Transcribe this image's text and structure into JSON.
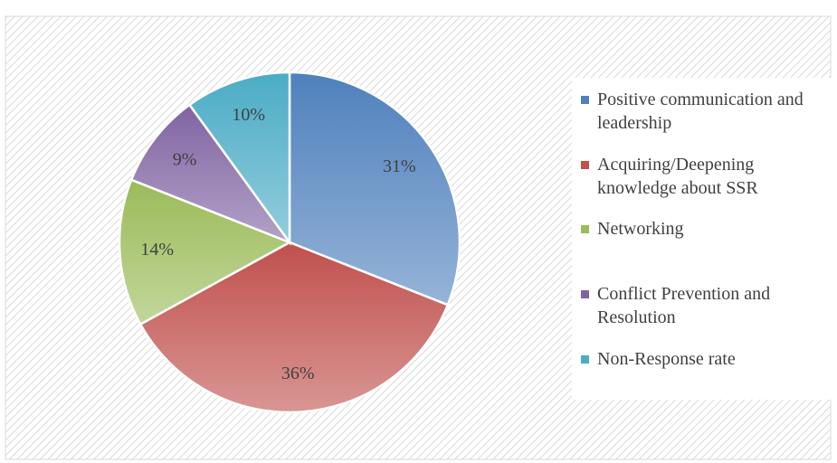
{
  "chart_data": {
    "type": "pie",
    "categories": [
      "Positive communication and leadership",
      "Acquiring/Deepening knowledge about SSR",
      "Networking",
      "Conflict Prevention and Resolution",
      "Non-Response rate"
    ],
    "values": [
      31,
      36,
      14,
      9,
      10
    ],
    "value_labels": [
      "31%",
      "36%",
      "14%",
      "9%",
      "10%"
    ],
    "colors": [
      "#4f81bd",
      "#c0504d",
      "#9bbb59",
      "#8064a2",
      "#4bacc6"
    ],
    "legend": "right"
  }
}
